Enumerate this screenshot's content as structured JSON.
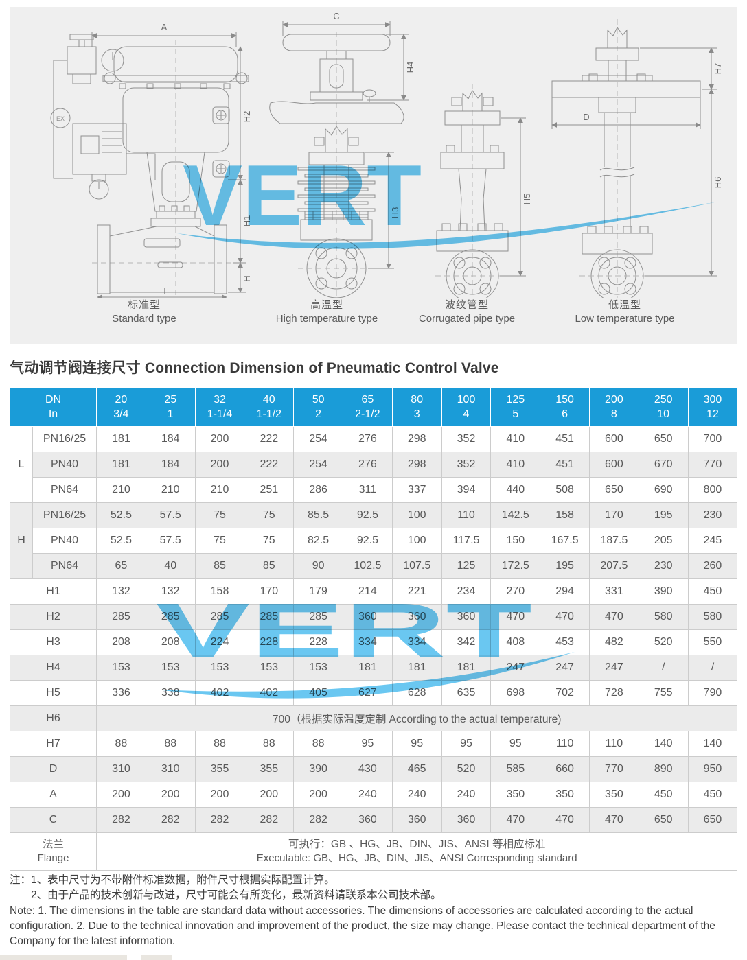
{
  "title": "气动调节阀连接尺寸 Connection Dimension of Pneumatic Control Valve",
  "watermark_text": "VERT",
  "colors": {
    "header_blue": "#1a9cd8",
    "row_alt_gray": "#ebebeb",
    "panel_gray": "#efefef",
    "watermark_blue": "#55c0ef"
  },
  "diagrams": {
    "ex_label": "EX",
    "dims": {
      "A": "A",
      "H2": "H2",
      "H1": "H1",
      "H": "H",
      "L": "L",
      "C": "C",
      "H4": "H4",
      "H3": "H3",
      "H5": "H5",
      "H7": "H7",
      "D": "D",
      "H6": "H6"
    },
    "types": [
      {
        "zh": "标准型",
        "en": "Standard type"
      },
      {
        "zh": "高温型",
        "en": "High temperature type"
      },
      {
        "zh": "波纹管型",
        "en": "Corrugated pipe type"
      },
      {
        "zh": "低温型",
        "en": "Low temperature type"
      }
    ]
  },
  "table": {
    "header": {
      "corner_top": "DN",
      "corner_bottom": "In",
      "columns": [
        {
          "dn": "20",
          "inch": "3/4"
        },
        {
          "dn": "25",
          "inch": "1"
        },
        {
          "dn": "32",
          "inch": "1-1/4"
        },
        {
          "dn": "40",
          "inch": "1-1/2"
        },
        {
          "dn": "50",
          "inch": "2"
        },
        {
          "dn": "65",
          "inch": "2-1/2"
        },
        {
          "dn": "80",
          "inch": "3"
        },
        {
          "dn": "100",
          "inch": "4"
        },
        {
          "dn": "125",
          "inch": "5"
        },
        {
          "dn": "150",
          "inch": "6"
        },
        {
          "dn": "200",
          "inch": "8"
        },
        {
          "dn": "250",
          "inch": "10"
        },
        {
          "dn": "300",
          "inch": "12"
        }
      ]
    },
    "body": [
      {
        "type": "group-start",
        "group": "L",
        "label": "PN16/25",
        "values": [
          "181",
          "184",
          "200",
          "222",
          "254",
          "276",
          "298",
          "352",
          "410",
          "451",
          "600",
          "650",
          "700"
        ]
      },
      {
        "type": "row",
        "label": "PN40",
        "values": [
          "181",
          "184",
          "200",
          "222",
          "254",
          "276",
          "298",
          "352",
          "410",
          "451",
          "600",
          "670",
          "770"
        ]
      },
      {
        "type": "row",
        "label": "PN64",
        "values": [
          "210",
          "210",
          "210",
          "251",
          "286",
          "311",
          "337",
          "394",
          "440",
          "508",
          "650",
          "690",
          "800"
        ]
      },
      {
        "type": "group-start",
        "group": "H",
        "label": "PN16/25",
        "values": [
          "52.5",
          "57.5",
          "75",
          "75",
          "85.5",
          "92.5",
          "100",
          "110",
          "142.5",
          "158",
          "170",
          "195",
          "230"
        ]
      },
      {
        "type": "row",
        "label": "PN40",
        "values": [
          "52.5",
          "57.5",
          "75",
          "75",
          "82.5",
          "92.5",
          "100",
          "117.5",
          "150",
          "167.5",
          "187.5",
          "205",
          "245"
        ]
      },
      {
        "type": "row",
        "label": "PN64",
        "values": [
          "65",
          "40",
          "85",
          "85",
          "90",
          "102.5",
          "107.5",
          "125",
          "172.5",
          "195",
          "207.5",
          "230",
          "260"
        ]
      },
      {
        "type": "dim",
        "label": "H1",
        "values": [
          "132",
          "132",
          "158",
          "170",
          "179",
          "214",
          "221",
          "234",
          "270",
          "294",
          "331",
          "390",
          "450"
        ]
      },
      {
        "type": "dim",
        "label": "H2",
        "values": [
          "285",
          "285",
          "285",
          "285",
          "285",
          "360",
          "360",
          "360",
          "470",
          "470",
          "470",
          "580",
          "580"
        ]
      },
      {
        "type": "dim",
        "label": "H3",
        "values": [
          "208",
          "208",
          "224",
          "228",
          "228",
          "334",
          "334",
          "342",
          "408",
          "453",
          "482",
          "520",
          "550"
        ]
      },
      {
        "type": "dim",
        "label": "H4",
        "values": [
          "153",
          "153",
          "153",
          "153",
          "153",
          "181",
          "181",
          "181",
          "247",
          "247",
          "247",
          "/",
          "/"
        ]
      },
      {
        "type": "dim",
        "label": "H5",
        "values": [
          "336",
          "338",
          "402",
          "402",
          "405",
          "627",
          "628",
          "635",
          "698",
          "702",
          "728",
          "755",
          "790"
        ]
      },
      {
        "type": "span",
        "label": "H6",
        "text": "700（根据实际温度定制 According to the actual temperature)"
      },
      {
        "type": "dim",
        "label": "H7",
        "values": [
          "88",
          "88",
          "88",
          "88",
          "88",
          "95",
          "95",
          "95",
          "95",
          "110",
          "110",
          "140",
          "140"
        ]
      },
      {
        "type": "dim",
        "label": "D",
        "values": [
          "310",
          "310",
          "355",
          "355",
          "390",
          "430",
          "465",
          "520",
          "585",
          "660",
          "770",
          "890",
          "950"
        ]
      },
      {
        "type": "dim",
        "label": "A",
        "values": [
          "200",
          "200",
          "200",
          "200",
          "200",
          "240",
          "240",
          "240",
          "350",
          "350",
          "350",
          "450",
          "450"
        ]
      },
      {
        "type": "dim",
        "label": "C",
        "values": [
          "282",
          "282",
          "282",
          "282",
          "282",
          "360",
          "360",
          "360",
          "470",
          "470",
          "470",
          "650",
          "650"
        ]
      },
      {
        "type": "flange",
        "label_zh": "法兰",
        "label_en": "Flange",
        "line1": "可执行：GB 、HG、JB、DIN、JIS、ANSI 等相应标准",
        "line2": "Executable: GB、HG、JB、DIN、JIS、ANSI Corresponding standard"
      }
    ]
  },
  "notes": {
    "zh1": "注：1、表中尺寸为不带附件标准数据，附件尺寸根据实际配置计算。",
    "zh2": "2、由于产品的技术创新与改进，尺寸可能会有所变化，最新资料请联系本公司技术部。",
    "en": "Note: 1. The dimensions in the table are standard data without accessories. The dimensions of accessories are calculated according to the actual configuration. 2. Due to the technical innovation and improvement of the product, the size may change. Please contact the technical department of the Company for the latest information."
  }
}
